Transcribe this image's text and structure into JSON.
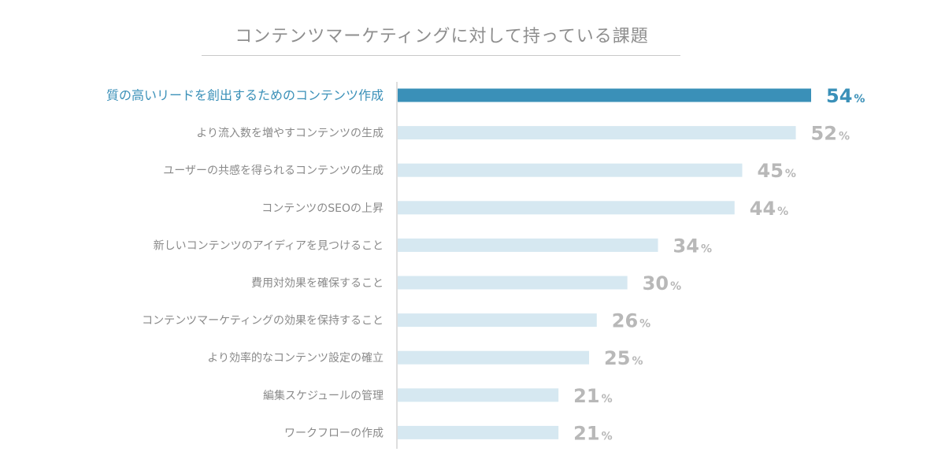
{
  "chart_data": {
    "type": "bar",
    "orientation": "horizontal",
    "title": "コンテンツマーケティングに対して持っている課題",
    "categories": [
      "質の高いリードを創出するためのコンテンツ作成",
      "より流入数を増やすコンテンツの生成",
      "ユーザーの共感を得られるコンテンツの生成",
      "コンテンツのSEOの上昇",
      "新しいコンテンツのアイディアを見つけること",
      "費用対効果を確保すること",
      "コンテンツマーケティングの効果を保持すること",
      "より効率的なコンテンツ設定の確立",
      "編集スケジュールの管理",
      "ワークフローの作成"
    ],
    "values": [
      54,
      52,
      45,
      44,
      34,
      30,
      26,
      25,
      21,
      21
    ],
    "value_suffix": "%",
    "xlim": [
      0,
      54
    ],
    "highlight_index": 0,
    "grid": false,
    "legend": "none"
  },
  "colors": {
    "highlight_bar": "#3a90b8",
    "bar": "#d6e8f1",
    "highlight_text": "#3a90b8",
    "label_text": "#8a8a8a",
    "value_text": "#b8b8b8",
    "axis": "#bdbdbd"
  }
}
